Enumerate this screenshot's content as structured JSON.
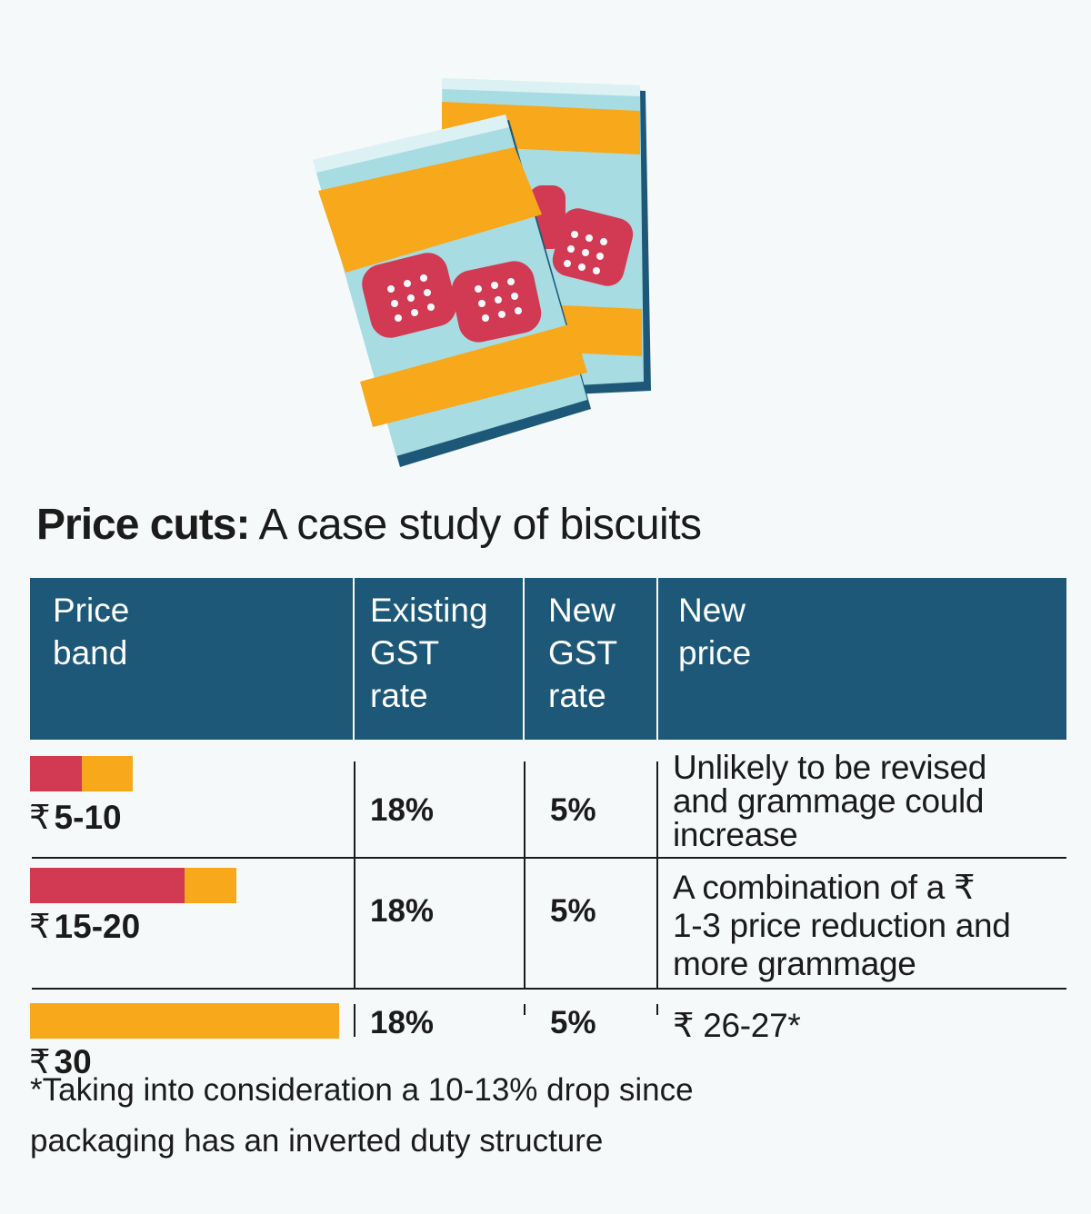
{
  "title": {
    "bold": "Price cuts:",
    "rest": " A case study of biscuits"
  },
  "headers": [
    {
      "lines": [
        "Price",
        "band"
      ]
    },
    {
      "lines": [
        "Existing",
        "GST",
        "rate"
      ]
    },
    {
      "lines": [
        "New",
        "GST",
        "rate"
      ]
    },
    {
      "lines": [
        "New",
        "price"
      ]
    }
  ],
  "rows": [
    {
      "band": "5-10",
      "existing": "18%",
      "new_rate": "5%",
      "price_lines": [
        "Unlikely to be revised",
        "and grammage could",
        "increase"
      ],
      "bar_tax_fraction": 0.5
    },
    {
      "band": "15-20",
      "existing": "18%",
      "new_rate": "5%",
      "price_lines": [
        "A combination of a ₹",
        "1-3 price reduction and",
        "more grammage"
      ],
      "bar_tax_fraction": 0.75
    },
    {
      "band": "30",
      "existing": "18%",
      "new_rate": "5%",
      "price_lines": [
        "₹ 26-27*"
      ],
      "bar_tax_fraction": 0
    }
  ],
  "currency_symbol": "₹",
  "footnote": {
    "lines": [
      "*Taking into consideration a 10-13% drop since",
      "packaging has an inverted duty structure"
    ]
  },
  "colors": {
    "header_bg": "#1d5878",
    "bar_red": "#d13a52",
    "bar_yellow": "#f7a81b",
    "pack_blue": "#a8dce3",
    "pack_orange": "#f7a81b",
    "biscuit": "#d13a52"
  }
}
